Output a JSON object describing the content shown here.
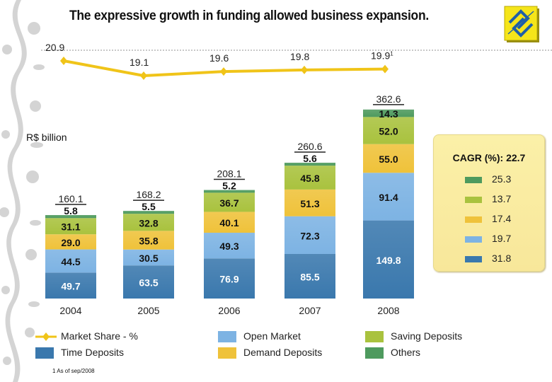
{
  "title": "The expressive growth in funding allowed business expansion.",
  "logo_icon": "banco-do-brasil-logo-icon",
  "chart_data": {
    "type": "bar",
    "stacked": true,
    "unit_label": "R$ billion",
    "categories": [
      "2004",
      "2005",
      "2006",
      "2007",
      "2008"
    ],
    "series": [
      {
        "name": "Time Deposits",
        "color": "#3a78ad",
        "label_color": "#ffffff",
        "values": [
          49.7,
          63.5,
          76.9,
          85.5,
          149.8
        ]
      },
      {
        "name": "Open Market",
        "color": "#7db3e3",
        "label_color": "#111111",
        "values": [
          44.5,
          30.5,
          49.3,
          72.3,
          91.4
        ]
      },
      {
        "name": "Demand Deposits",
        "color": "#efc23a",
        "label_color": "#111111",
        "values": [
          29.0,
          35.8,
          40.1,
          51.3,
          55.0
        ]
      },
      {
        "name": "Saving Deposits",
        "color": "#a9c23e",
        "label_color": "#111111",
        "values": [
          31.1,
          32.8,
          36.7,
          45.8,
          52.0
        ]
      },
      {
        "name": "Others",
        "color": "#4e9a5e",
        "label_color": "#111111",
        "values": [
          5.8,
          5.5,
          5.2,
          5.6,
          14.3
        ]
      }
    ],
    "totals": [
      "160.1",
      "168.2",
      "208.1",
      "260.6",
      "362.6"
    ],
    "line": {
      "name": "Market Share - %",
      "color": "#f0c419",
      "values": [
        20.9,
        19.1,
        19.6,
        19.8,
        19.9
      ],
      "labels": [
        "20.9",
        "19.1",
        "19.6",
        "19.8",
        "19.9"
      ],
      "last_label_footnote": "1"
    },
    "cagr": {
      "title": "CAGR (%): 22.7",
      "items": [
        {
          "series": "Others",
          "color": "#4e9a5e",
          "value": "25.3"
        },
        {
          "series": "Saving Deposits",
          "color": "#a9c23e",
          "value": "13.7"
        },
        {
          "series": "Demand Deposits",
          "color": "#efc23a",
          "value": "17.4"
        },
        {
          "series": "Open Market",
          "color": "#7db3e3",
          "value": "19.7"
        },
        {
          "series": "Time Deposits",
          "color": "#3a78ad",
          "value": "31.8"
        }
      ]
    },
    "legend": [
      {
        "label": "Market Share - %",
        "type": "line",
        "color": "#f0c419"
      },
      {
        "label": "Time Deposits",
        "type": "box",
        "color": "#3a78ad"
      },
      {
        "label": "Open Market",
        "type": "box",
        "color": "#7db3e3"
      },
      {
        "label": "Demand Deposits",
        "type": "box",
        "color": "#efc23a"
      },
      {
        "label": "Saving Deposits",
        "type": "box",
        "color": "#a9c23e"
      },
      {
        "label": "Others",
        "type": "box",
        "color": "#4e9a5e"
      }
    ],
    "legend_position": "bottom"
  },
  "footnote": "1 As of sep/2008"
}
